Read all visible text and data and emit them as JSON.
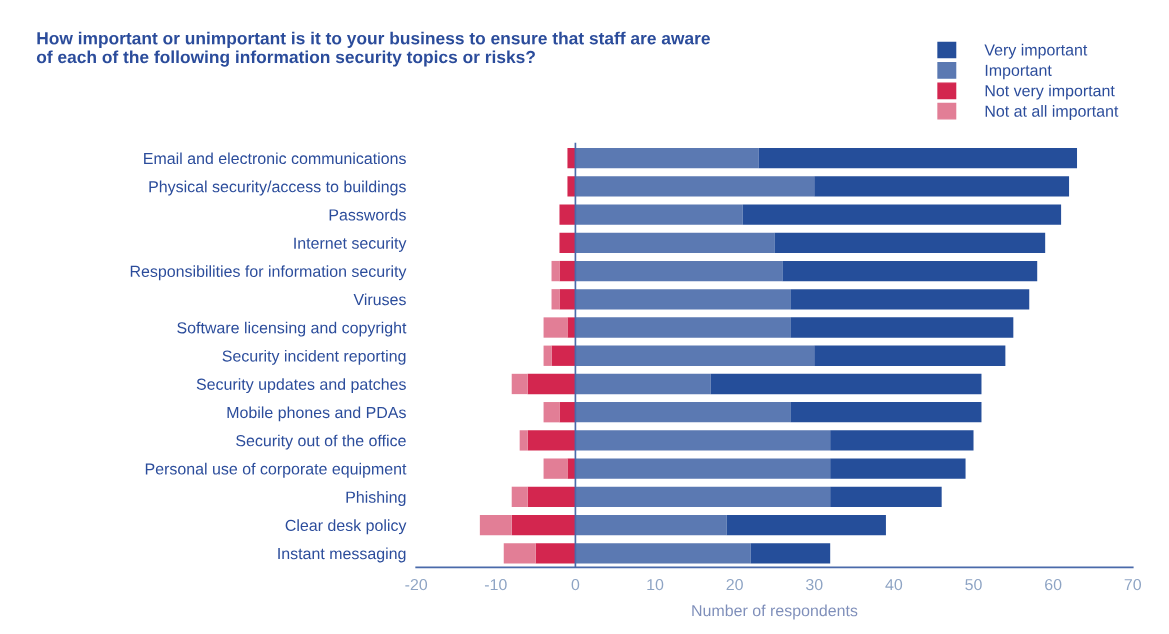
{
  "chart_data": {
    "type": "bar",
    "orientation": "horizontal",
    "stacked": true,
    "title": "How important or unimportant is it to your business to ensure that staff are aware\nof each of the following information security topics or risks?",
    "xlabel": "Number of respondents",
    "categories": [
      "Email and electronic communications",
      "Physical security/access to buildings",
      "Passwords",
      "Internet security",
      "Responsibilities for information security",
      "Viruses",
      "Software licensing and copyright",
      "Security incident reporting",
      "Security updates and patches",
      "Mobile phones and PDAs",
      "Security out of the office",
      "Personal use of corporate equipment",
      "Phishing",
      "Clear desk policy",
      "Instant messaging"
    ],
    "series": [
      {
        "name": "Important",
        "color": "#5b79b2",
        "values": [
          23,
          30,
          21,
          25,
          26,
          27,
          27,
          30,
          17,
          27,
          32,
          32,
          32,
          19,
          22
        ]
      },
      {
        "name": "Very important",
        "color": "#254e9a",
        "values": [
          40,
          32,
          40,
          34,
          32,
          30,
          28,
          24,
          34,
          24,
          18,
          17,
          14,
          20,
          10
        ]
      },
      {
        "name": "Not very important",
        "color": "#d3264f",
        "values": [
          -1,
          -1,
          -2,
          -2,
          -2,
          -2,
          -1,
          -3,
          -6,
          -2,
          -6,
          -1,
          -6,
          -8,
          -5
        ]
      },
      {
        "name": "Not at all important",
        "color": "#e27e96",
        "values": [
          0,
          0,
          0,
          0,
          -1,
          -1,
          -3,
          -1,
          -2,
          -2,
          -1,
          -3,
          -2,
          -4,
          -4
        ]
      }
    ],
    "xlim": [
      -20,
      70
    ],
    "xticks": [
      -20,
      -10,
      0,
      10,
      20,
      30,
      40,
      50,
      60,
      70
    ],
    "ref_lines": [
      {
        "axis": "x",
        "value": 0,
        "color": "#4a6aaa"
      }
    ],
    "grid": false,
    "legend": "top right"
  }
}
